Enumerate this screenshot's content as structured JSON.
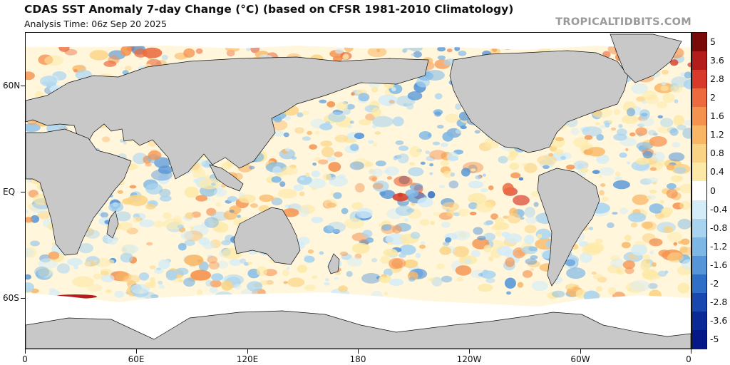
{
  "header": {
    "title": "CDAS SST Anomaly 7-day Change (°C) (based on CFSR 1981-2010 Climatology)",
    "analysis_time": "Analysis Time: 06z Sep 20 2025",
    "brand": "TROPICALTIDBITS.COM"
  },
  "map": {
    "latitude_labels": [
      "60N",
      "EQ",
      "60S"
    ],
    "longitude_labels": [
      "0",
      "60E",
      "120E",
      "180",
      "120W",
      "60W",
      "0"
    ],
    "land_color": "#c8c8c8",
    "ocean_base_color": "#fff6dc",
    "sea_ice_color": "#ffffff"
  },
  "colorbar": {
    "labels": [
      "5",
      "3.6",
      "2.8",
      "2",
      "1.6",
      "1.2",
      "0.8",
      "0.4",
      "0",
      "-0.4",
      "-0.8",
      "-1.2",
      "-1.6",
      "-2",
      "-2.8",
      "-3.6",
      "-5"
    ],
    "colors": [
      "#7a0a0a",
      "#b41c1c",
      "#d73a2a",
      "#ec6a3e",
      "#f5924e",
      "#f9b766",
      "#fbd384",
      "#fde9a6",
      "#ffffff",
      "#d3ecf8",
      "#a9d4f0",
      "#7db7e6",
      "#5595d8",
      "#2f6fc8",
      "#1848b0",
      "#0b2a98",
      "#061888"
    ]
  }
}
